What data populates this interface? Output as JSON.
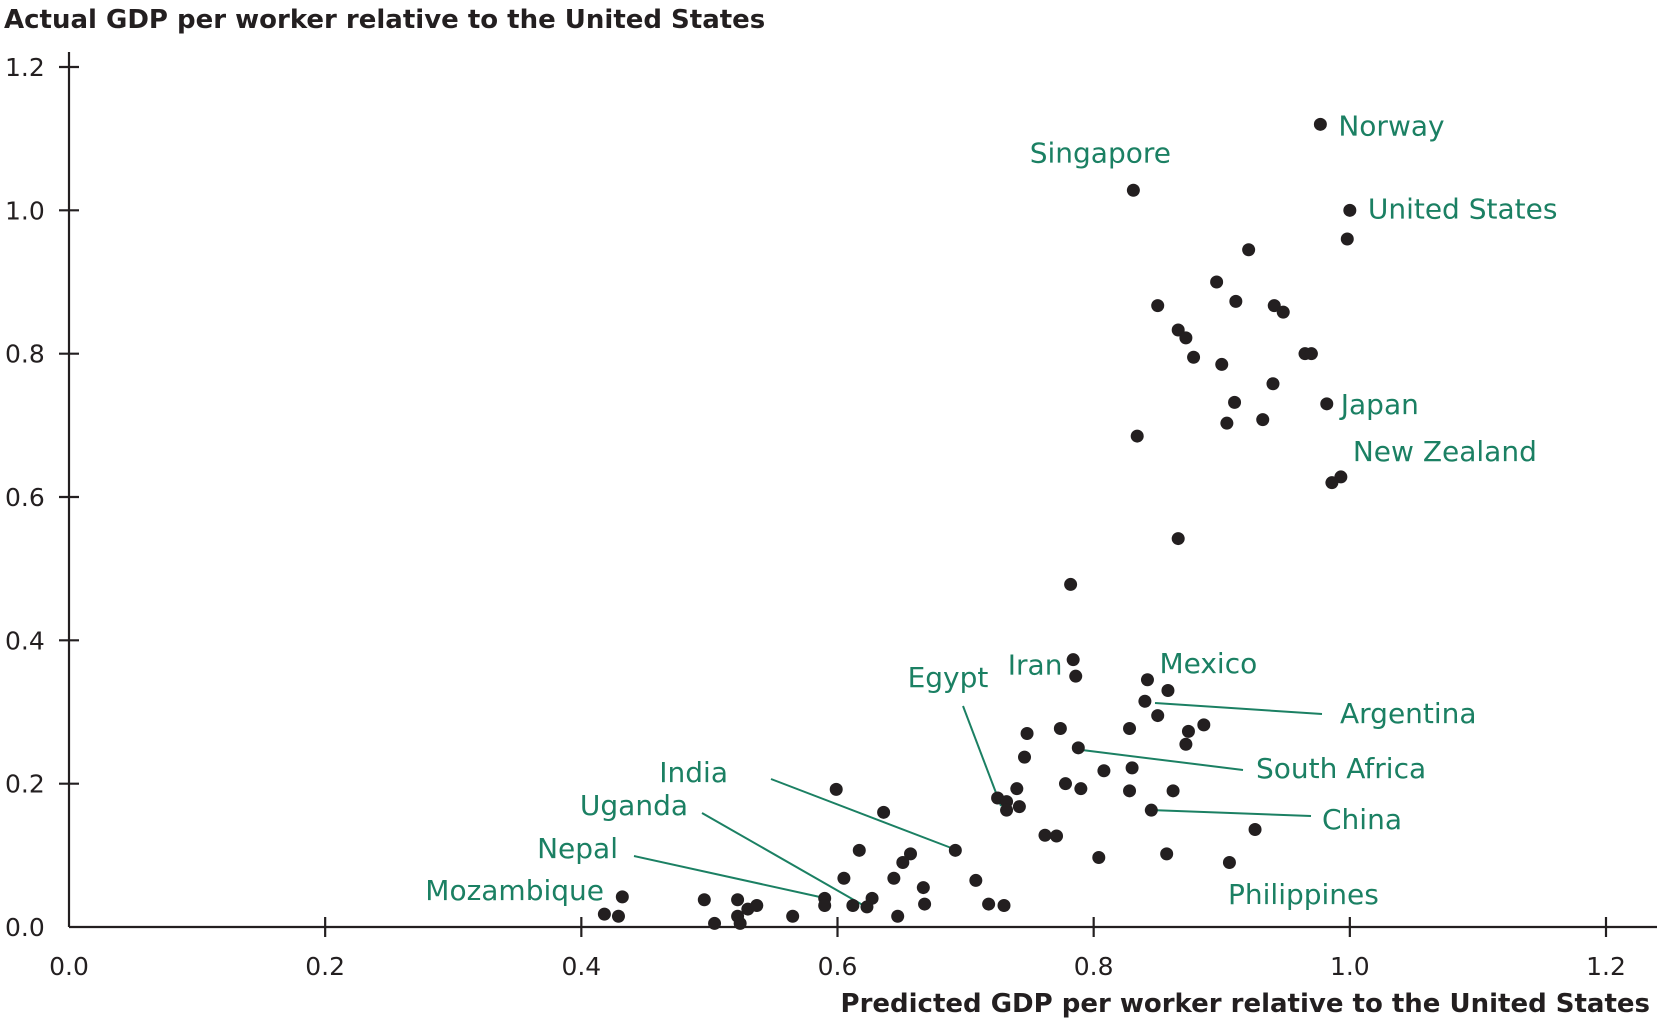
{
  "chart_data": {
    "type": "scatter",
    "ylabel": "Actual GDP per worker relative to the United States",
    "xlabel": "Predicted GDP per worker relative to the United States",
    "xlim": [
      0.0,
      1.2
    ],
    "ylim": [
      0.0,
      1.2
    ],
    "xticks": [
      "0.0",
      "0.2",
      "0.4",
      "0.6",
      "0.8",
      "1.0",
      "1.2"
    ],
    "yticks": [
      "0.0",
      "0.2",
      "0.4",
      "0.6",
      "0.8",
      "1.0",
      "1.2"
    ],
    "grid": false,
    "colors": {
      "points": "#231f20",
      "labels": "#1b8063",
      "axes": "#231f20"
    },
    "labeled_points": [
      {
        "label": "Norway",
        "x": 0.977,
        "y": 1.12
      },
      {
        "label": "Singapore",
        "x": 0.831,
        "y": 1.028
      },
      {
        "label": "United States",
        "x": 1.0,
        "y": 1.0
      },
      {
        "label": "Japan",
        "x": 0.982,
        "y": 0.73
      },
      {
        "label": "New Zealand",
        "x": 0.993,
        "y": 0.628
      },
      {
        "label": "Mexico",
        "x": 0.842,
        "y": 0.345
      },
      {
        "label": "Iran",
        "x": 0.785,
        "y": 0.348
      },
      {
        "label": "Egypt",
        "x": 0.732,
        "y": 0.165
      },
      {
        "label": "Argentina",
        "x": 0.84,
        "y": 0.315
      },
      {
        "label": "South Africa",
        "x": 0.788,
        "y": 0.25
      },
      {
        "label": "China",
        "x": 0.845,
        "y": 0.163
      },
      {
        "label": "Philippines",
        "x": 0.906,
        "y": 0.09
      },
      {
        "label": "India",
        "x": 0.692,
        "y": 0.107
      },
      {
        "label": "Uganda",
        "x": 0.623,
        "y": 0.028
      },
      {
        "label": "Nepal",
        "x": 0.59,
        "y": 0.04
      },
      {
        "label": "Mozambique",
        "x": 0.432,
        "y": 0.042
      }
    ],
    "points": [
      [
        0.977,
        1.12
      ],
      [
        0.831,
        1.028
      ],
      [
        1.0,
        1.0
      ],
      [
        0.998,
        0.96
      ],
      [
        0.921,
        0.945
      ],
      [
        0.896,
        0.9
      ],
      [
        0.85,
        0.867
      ],
      [
        0.911,
        0.873
      ],
      [
        0.941,
        0.867
      ],
      [
        0.948,
        0.858
      ],
      [
        0.866,
        0.833
      ],
      [
        0.872,
        0.822
      ],
      [
        0.965,
        0.8
      ],
      [
        0.97,
        0.8
      ],
      [
        0.878,
        0.795
      ],
      [
        0.9,
        0.785
      ],
      [
        0.94,
        0.758
      ],
      [
        0.91,
        0.732
      ],
      [
        0.982,
        0.73
      ],
      [
        0.904,
        0.703
      ],
      [
        0.932,
        0.708
      ],
      [
        0.834,
        0.685
      ],
      [
        0.993,
        0.628
      ],
      [
        0.986,
        0.62
      ],
      [
        0.866,
        0.542
      ],
      [
        0.782,
        0.478
      ],
      [
        0.784,
        0.373
      ],
      [
        0.786,
        0.35
      ],
      [
        0.842,
        0.345
      ],
      [
        0.858,
        0.33
      ],
      [
        0.84,
        0.315
      ],
      [
        0.85,
        0.295
      ],
      [
        0.886,
        0.282
      ],
      [
        0.828,
        0.277
      ],
      [
        0.774,
        0.277
      ],
      [
        0.748,
        0.27
      ],
      [
        0.874,
        0.273
      ],
      [
        0.872,
        0.255
      ],
      [
        0.788,
        0.25
      ],
      [
        0.746,
        0.237
      ],
      [
        0.83,
        0.222
      ],
      [
        0.808,
        0.218
      ],
      [
        0.778,
        0.2
      ],
      [
        0.79,
        0.193
      ],
      [
        0.828,
        0.19
      ],
      [
        0.862,
        0.19
      ],
      [
        0.74,
        0.193
      ],
      [
        0.725,
        0.18
      ],
      [
        0.732,
        0.175
      ],
      [
        0.742,
        0.168
      ],
      [
        0.732,
        0.163
      ],
      [
        0.845,
        0.163
      ],
      [
        0.762,
        0.128
      ],
      [
        0.771,
        0.127
      ],
      [
        0.926,
        0.136
      ],
      [
        0.599,
        0.192
      ],
      [
        0.636,
        0.16
      ],
      [
        0.692,
        0.107
      ],
      [
        0.617,
        0.107
      ],
      [
        0.657,
        0.102
      ],
      [
        0.651,
        0.09
      ],
      [
        0.804,
        0.097
      ],
      [
        0.857,
        0.102
      ],
      [
        0.906,
        0.09
      ],
      [
        0.605,
        0.068
      ],
      [
        0.644,
        0.068
      ],
      [
        0.708,
        0.065
      ],
      [
        0.667,
        0.055
      ],
      [
        0.59,
        0.04
      ],
      [
        0.627,
        0.04
      ],
      [
        0.668,
        0.032
      ],
      [
        0.718,
        0.032
      ],
      [
        0.73,
        0.03
      ],
      [
        0.59,
        0.03
      ],
      [
        0.612,
        0.03
      ],
      [
        0.623,
        0.028
      ],
      [
        0.496,
        0.038
      ],
      [
        0.522,
        0.038
      ],
      [
        0.53,
        0.025
      ],
      [
        0.537,
        0.03
      ],
      [
        0.565,
        0.015
      ],
      [
        0.647,
        0.015
      ],
      [
        0.522,
        0.015
      ],
      [
        0.432,
        0.042
      ],
      [
        0.418,
        0.018
      ],
      [
        0.429,
        0.015
      ],
      [
        0.504,
        0.005
      ],
      [
        0.524,
        0.005
      ]
    ]
  }
}
